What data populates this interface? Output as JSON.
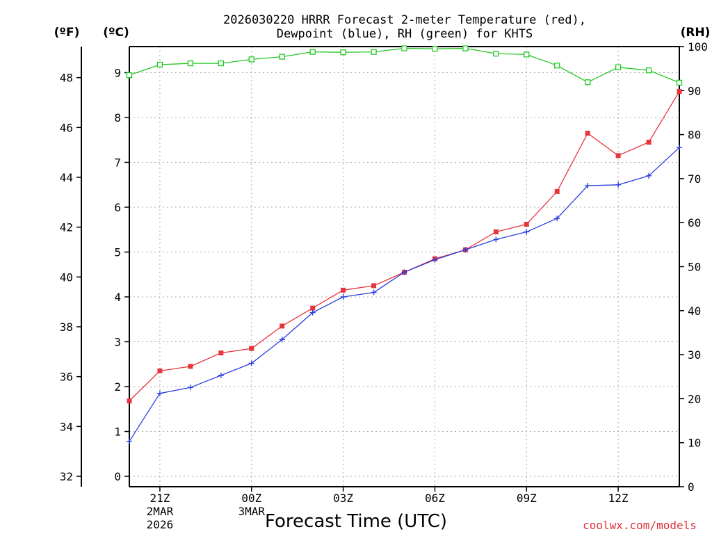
{
  "chart_data": {
    "type": "line",
    "title_line1": "2026030220 HRRR Forecast 2-meter Temperature (red),",
    "title_line2": "Dewpoint (blue), RH (green) for KHTS",
    "xlabel": "Forecast Time (UTC)",
    "credit": "coolwx.com/models",
    "hours": [
      0,
      1,
      2,
      3,
      4,
      5,
      6,
      7,
      8,
      9,
      10,
      11,
      12,
      13,
      14,
      15,
      16,
      17,
      18
    ],
    "x_ticks": [
      {
        "h": 1,
        "label": "21Z",
        "sub1": "2MAR",
        "sub2": "2026"
      },
      {
        "h": 4,
        "label": "00Z",
        "sub1": "3MAR",
        "sub2": ""
      },
      {
        "h": 7,
        "label": "03Z",
        "sub1": "",
        "sub2": ""
      },
      {
        "h": 10,
        "label": "06Z",
        "sub1": "",
        "sub2": ""
      },
      {
        "h": 13,
        "label": "09Z",
        "sub1": "",
        "sub2": ""
      },
      {
        "h": 16,
        "label": "12Z",
        "sub1": "",
        "sub2": ""
      }
    ],
    "left_axis_c": {
      "unit": "(ºC)",
      "min": 0,
      "max": 9.5,
      "ticks": [
        "0",
        "1",
        "2",
        "3",
        "4",
        "5",
        "6",
        "7",
        "8",
        "9"
      ]
    },
    "left_axis_f": {
      "unit": "(ºF)",
      "ticks": [
        "32",
        "34",
        "36",
        "38",
        "40",
        "42",
        "44",
        "46",
        "48"
      ]
    },
    "right_axis_rh": {
      "unit": "(RH)",
      "min": 0,
      "max": 100,
      "ticks": [
        "0",
        "10",
        "20",
        "30",
        "40",
        "50",
        "60",
        "70",
        "80",
        "90",
        "100"
      ]
    },
    "series": [
      {
        "name": "Temperature",
        "color": "#e8343c",
        "marker": "square-filled",
        "axis": "C",
        "values": [
          1.68,
          2.35,
          2.45,
          2.75,
          2.85,
          3.35,
          3.75,
          4.15,
          4.25,
          4.55,
          4.85,
          5.05,
          5.45,
          5.62,
          6.35,
          7.65,
          7.15,
          7.45,
          8.58
        ]
      },
      {
        "name": "Dewpoint",
        "color": "#2b3ee0",
        "marker": "plus",
        "axis": "C",
        "values": [
          0.78,
          1.85,
          1.98,
          2.25,
          2.52,
          3.05,
          3.65,
          4.0,
          4.1,
          4.55,
          4.83,
          5.05,
          5.28,
          5.45,
          5.75,
          6.48,
          6.5,
          6.7,
          7.33
        ]
      },
      {
        "name": "RH",
        "color": "#22c822",
        "marker": "square-open",
        "axis": "RH",
        "values": [
          93.5,
          95.9,
          96.2,
          96.2,
          97.1,
          97.7,
          98.8,
          98.7,
          98.8,
          99.6,
          99.5,
          99.6,
          98.4,
          98.2,
          95.7,
          91.9,
          95.3,
          94.6,
          91.8
        ]
      }
    ]
  }
}
